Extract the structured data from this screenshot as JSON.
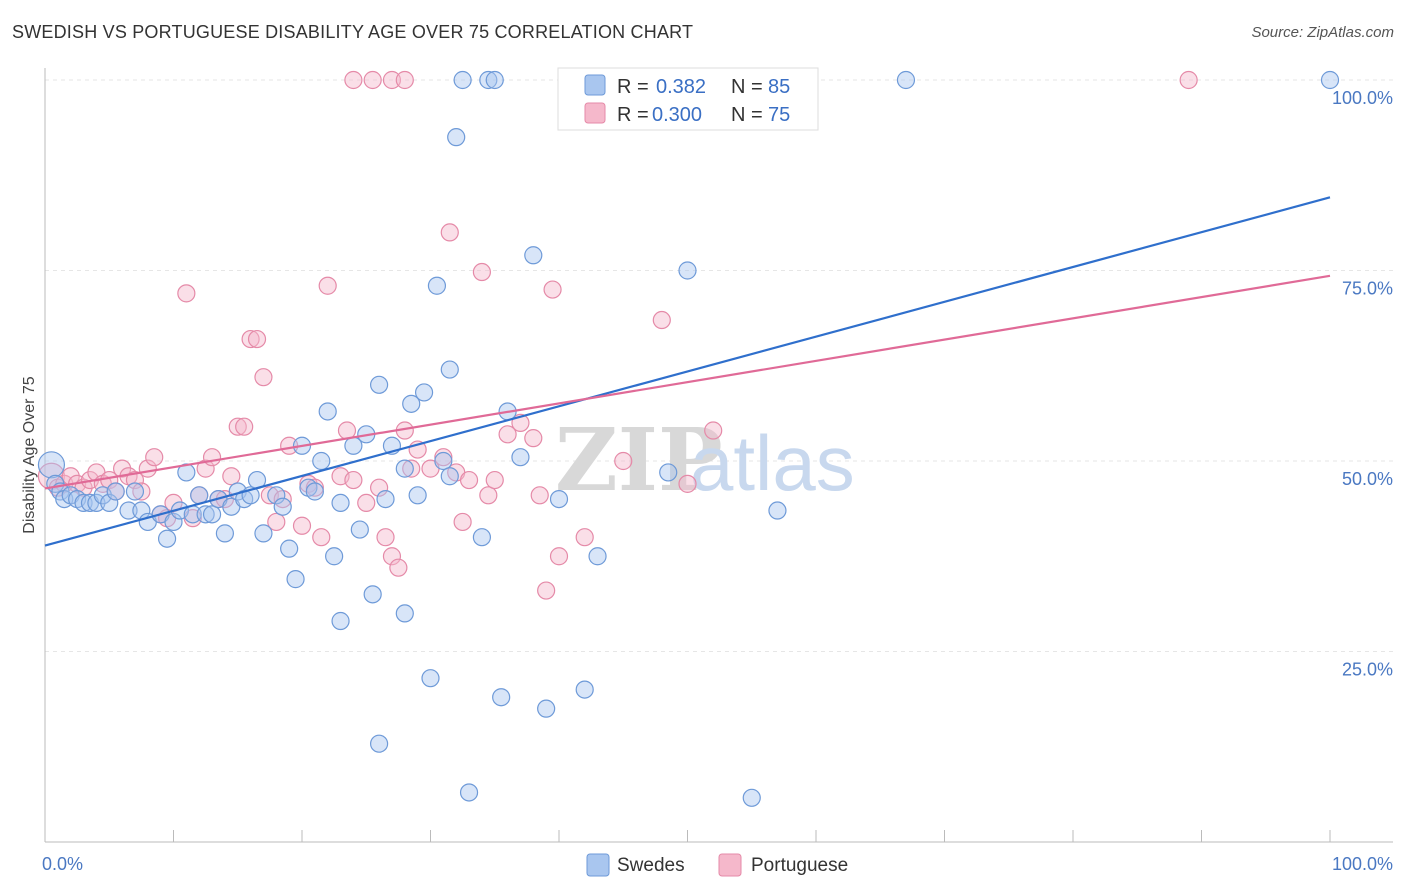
{
  "header": {
    "title": "SWEDISH VS PORTUGUESE DISABILITY AGE OVER 75 CORRELATION CHART",
    "source": "Source: ZipAtlas.com"
  },
  "watermark": {
    "zip": "ZIP",
    "atlas": "atlas"
  },
  "legend": {
    "r_label": "R =",
    "n_label": "N =",
    "swedes": {
      "r": "0.382",
      "n": "85"
    },
    "portuguese": {
      "r": "0.300",
      "n": "75"
    }
  },
  "colors": {
    "swedes_fill": "#a9c6ef",
    "swedes_stroke": "#6e9ad8",
    "swedes_line": "#2f6fcc",
    "portuguese_fill": "#f5b8cb",
    "portuguese_stroke": "#e58aa8",
    "portuguese_line": "#e06a97"
  },
  "chart_data": {
    "type": "scatter",
    "title": "SWEDISH VS PORTUGUESE DISABILITY AGE OVER 75 CORRELATION CHART",
    "xlabel": "",
    "ylabel": "Disability Age Over 75",
    "xlim": [
      0,
      100
    ],
    "ylim": [
      0,
      100
    ],
    "x_tick_labels": [
      "0.0%",
      "100.0%"
    ],
    "y_ticks": [
      25,
      50,
      75,
      100
    ],
    "y_tick_labels": [
      "25.0%",
      "50.0%",
      "75.0%",
      "100.0%"
    ],
    "grid": true,
    "legend_position": "top-center",
    "series": [
      {
        "name": "Swedes",
        "r": 0.382,
        "n": 85,
        "trend": {
          "x": [
            0,
            100
          ],
          "y": [
            38.9,
            84.6
          ]
        },
        "points": [
          [
            0.5,
            49.5
          ],
          [
            0.8,
            47
          ],
          [
            1.2,
            46
          ],
          [
            1.5,
            45
          ],
          [
            2,
            45.5
          ],
          [
            2.5,
            45
          ],
          [
            3,
            44.5
          ],
          [
            3.5,
            44.5
          ],
          [
            4,
            44.5
          ],
          [
            4.5,
            45.5
          ],
          [
            5,
            44.5
          ],
          [
            5.5,
            46
          ],
          [
            6.5,
            43.5
          ],
          [
            7,
            46
          ],
          [
            7.5,
            43.5
          ],
          [
            8,
            42
          ],
          [
            9,
            43
          ],
          [
            9.5,
            39.8
          ],
          [
            10,
            42
          ],
          [
            10.5,
            43.5
          ],
          [
            11,
            48.5
          ],
          [
            11.5,
            43
          ],
          [
            12,
            45.5
          ],
          [
            12.5,
            43
          ],
          [
            13,
            43
          ],
          [
            13.5,
            45
          ],
          [
            14,
            40.5
          ],
          [
            14.5,
            44
          ],
          [
            15,
            46
          ],
          [
            15.5,
            45
          ],
          [
            16,
            45.5
          ],
          [
            16.5,
            47.5
          ],
          [
            17,
            40.5
          ],
          [
            18,
            45.5
          ],
          [
            18.5,
            44
          ],
          [
            19,
            38.5
          ],
          [
            19.5,
            34.5
          ],
          [
            20,
            52
          ],
          [
            20.5,
            46.5
          ],
          [
            21,
            46
          ],
          [
            21.5,
            50
          ],
          [
            22,
            56.5
          ],
          [
            22.5,
            37.5
          ],
          [
            23,
            44.5
          ],
          [
            23,
            29
          ],
          [
            24,
            52
          ],
          [
            24.5,
            41
          ],
          [
            25,
            53.5
          ],
          [
            25.5,
            32.5
          ],
          [
            26,
            60
          ],
          [
            26.5,
            45
          ],
          [
            26,
            12.9
          ],
          [
            27,
            52
          ],
          [
            28,
            49
          ],
          [
            28,
            30
          ],
          [
            28.5,
            57.5
          ],
          [
            29,
            45.5
          ],
          [
            29.5,
            59
          ],
          [
            30,
            21.5
          ],
          [
            30.5,
            73
          ],
          [
            31,
            50
          ],
          [
            31.5,
            48
          ],
          [
            31.5,
            62
          ],
          [
            32,
            92.5
          ],
          [
            32.5,
            100
          ],
          [
            33,
            6.5
          ],
          [
            34,
            40
          ],
          [
            34.5,
            100
          ],
          [
            35,
            100
          ],
          [
            35.5,
            19
          ],
          [
            36,
            56.5
          ],
          [
            37,
            50.5
          ],
          [
            38,
            77
          ],
          [
            39,
            17.5
          ],
          [
            40,
            45
          ],
          [
            42,
            20
          ],
          [
            43,
            37.5
          ],
          [
            45,
            100
          ],
          [
            47,
            100
          ],
          [
            48.5,
            48.5
          ],
          [
            50,
            75
          ],
          [
            55,
            5.8
          ],
          [
            57,
            43.5
          ],
          [
            67,
            100
          ],
          [
            100,
            100
          ]
        ]
      },
      {
        "name": "Portuguese",
        "r": 0.3,
        "n": 75,
        "trend": {
          "x": [
            0,
            100
          ],
          "y": [
            46.4,
            74.3
          ]
        },
        "points": [
          [
            0.5,
            48
          ],
          [
            1,
            46.5
          ],
          [
            1.5,
            47
          ],
          [
            2,
            48
          ],
          [
            2.5,
            47
          ],
          [
            3,
            46.5
          ],
          [
            3.5,
            47.5
          ],
          [
            4,
            48.5
          ],
          [
            4.5,
            47
          ],
          [
            5,
            47.5
          ],
          [
            5.5,
            46
          ],
          [
            6,
            49
          ],
          [
            6.5,
            48
          ],
          [
            7,
            47.5
          ],
          [
            7.5,
            46
          ],
          [
            8,
            49
          ],
          [
            8.5,
            50.5
          ],
          [
            9,
            43
          ],
          [
            9.5,
            42.5
          ],
          [
            10,
            44.5
          ],
          [
            11,
            72
          ],
          [
            11.5,
            42.5
          ],
          [
            12,
            45.5
          ],
          [
            12.5,
            49
          ],
          [
            13,
            50.5
          ],
          [
            13.5,
            45
          ],
          [
            14,
            45
          ],
          [
            14.5,
            48
          ],
          [
            15,
            54.5
          ],
          [
            15.5,
            54.5
          ],
          [
            16,
            66
          ],
          [
            16.5,
            66
          ],
          [
            17,
            61
          ],
          [
            17.5,
            45.5
          ],
          [
            18,
            42
          ],
          [
            18.5,
            45
          ],
          [
            19,
            52
          ],
          [
            20,
            41.5
          ],
          [
            20.5,
            47
          ],
          [
            21,
            46.5
          ],
          [
            21.5,
            40
          ],
          [
            22,
            73
          ],
          [
            23,
            48
          ],
          [
            23.5,
            54
          ],
          [
            24,
            47.5
          ],
          [
            25,
            44.5
          ],
          [
            26,
            46.5
          ],
          [
            26.5,
            40
          ],
          [
            27,
            37.5
          ],
          [
            27.5,
            36
          ],
          [
            28,
            54
          ],
          [
            28.5,
            49
          ],
          [
            29,
            51.5
          ],
          [
            30,
            49
          ],
          [
            31,
            50.5
          ],
          [
            31.5,
            80
          ],
          [
            32,
            48.5
          ],
          [
            32.5,
            42
          ],
          [
            33,
            47.5
          ],
          [
            34,
            74.8
          ],
          [
            34.5,
            45.5
          ],
          [
            35,
            47.5
          ],
          [
            36,
            53.5
          ],
          [
            37,
            55
          ],
          [
            38,
            53
          ],
          [
            38.5,
            45.5
          ],
          [
            39,
            33
          ],
          [
            39.5,
            72.5
          ],
          [
            40,
            37.5
          ],
          [
            42,
            40
          ],
          [
            45,
            50
          ],
          [
            48,
            68.5
          ],
          [
            50,
            47
          ],
          [
            52,
            54
          ],
          [
            89,
            100
          ]
        ],
        "extra_points": [
          [
            24,
            100
          ],
          [
            25.5,
            100
          ],
          [
            27,
            100
          ],
          [
            28,
            100
          ]
        ]
      }
    ]
  },
  "bottom_legend": {
    "swedes": "Swedes",
    "portuguese": "Portuguese"
  }
}
